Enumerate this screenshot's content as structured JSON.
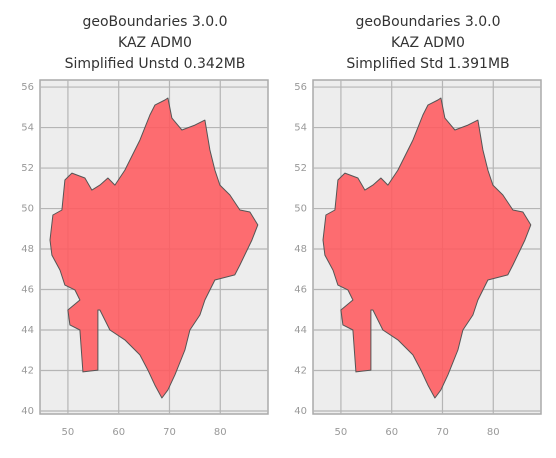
{
  "chart_data": [
    {
      "type": "map",
      "title": [
        "geoBoundaries 3.0.0",
        "KAZ ADM0",
        "Simplified Unstd 0.342MB"
      ],
      "color": "#ff5a5f",
      "grid": true,
      "xlim": [
        44.5,
        89.4
      ],
      "ylim": [
        39.85,
        56.35
      ],
      "xticks": [
        50,
        60,
        70,
        80
      ],
      "yticks": [
        40,
        42,
        44,
        46,
        48,
        50,
        52,
        54,
        56
      ],
      "x": [
        46.46,
        47.05,
        48.82,
        49.41,
        50.79,
        53.35,
        54.72,
        56.3,
        57.87,
        59.25,
        61.22,
        64.17,
        66.14,
        67.13,
        69.09,
        69.69,
        70.47,
        72.44,
        75.0,
        76.97,
        77.95,
        78.94,
        79.92,
        81.89,
        83.86,
        85.83,
        87.4,
        86.22,
        83.86,
        82.87,
        78.94,
        76.97,
        75.98,
        74.02,
        73.03,
        71.06,
        69.69,
        68.5,
        67.13,
        65.75,
        64.17,
        61.22,
        58.27,
        56.3,
        55.91,
        55.91,
        52.95,
        52.36,
        50.39,
        50.0,
        52.36,
        51.38,
        49.41,
        48.43,
        46.85
      ],
      "values": [
        48.44,
        49.68,
        49.93,
        51.41,
        51.75,
        51.51,
        50.91,
        51.16,
        51.51,
        51.16,
        51.9,
        53.38,
        54.62,
        55.11,
        55.36,
        55.46,
        54.47,
        53.88,
        54.12,
        54.37,
        52.89,
        51.9,
        51.16,
        50.67,
        49.93,
        49.83,
        49.19,
        48.44,
        47.21,
        46.72,
        46.47,
        45.48,
        44.74,
        44.0,
        43.01,
        41.78,
        41.04,
        40.64,
        41.28,
        42.02,
        42.77,
        43.51,
        44.0,
        44.99,
        44.99,
        42.02,
        41.93,
        44.0,
        44.25,
        44.99,
        45.48,
        45.98,
        46.22,
        46.96,
        47.7
      ]
    },
    {
      "type": "map",
      "title": [
        "geoBoundaries 3.0.0",
        "KAZ ADM0",
        "Simplified Std 1.391MB"
      ],
      "color": "#ff5a5f",
      "grid": true,
      "xlim": [
        44.5,
        89.4
      ],
      "ylim": [
        39.85,
        56.35
      ],
      "xticks": [
        50,
        60,
        70,
        80
      ],
      "yticks": [
        40,
        42,
        44,
        46,
        48,
        50,
        52,
        54,
        56
      ],
      "x": [
        46.46,
        47.05,
        48.82,
        49.41,
        50.79,
        53.35,
        54.72,
        56.3,
        57.87,
        59.25,
        61.22,
        64.17,
        66.14,
        67.13,
        69.09,
        69.69,
        70.47,
        72.44,
        75.0,
        76.97,
        77.95,
        78.94,
        79.92,
        81.89,
        83.86,
        85.83,
        87.4,
        86.22,
        83.86,
        82.87,
        78.94,
        76.97,
        75.98,
        74.02,
        73.03,
        71.06,
        69.69,
        68.5,
        67.13,
        65.75,
        64.17,
        61.22,
        58.27,
        56.3,
        55.91,
        55.91,
        52.95,
        52.36,
        50.39,
        50.0,
        52.36,
        51.38,
        49.41,
        48.43,
        46.85
      ],
      "values": [
        48.44,
        49.68,
        49.93,
        51.41,
        51.75,
        51.51,
        50.91,
        51.16,
        51.51,
        51.16,
        51.9,
        53.38,
        54.62,
        55.11,
        55.36,
        55.46,
        54.47,
        53.88,
        54.12,
        54.37,
        52.89,
        51.9,
        51.16,
        50.67,
        49.93,
        49.83,
        49.19,
        48.44,
        47.21,
        46.72,
        46.47,
        45.48,
        44.74,
        44.0,
        43.01,
        41.78,
        41.04,
        40.64,
        41.28,
        42.02,
        42.77,
        43.51,
        44.0,
        44.99,
        44.99,
        42.02,
        41.93,
        44.0,
        44.25,
        44.99,
        45.48,
        45.98,
        46.22,
        46.96,
        47.7
      ]
    }
  ]
}
